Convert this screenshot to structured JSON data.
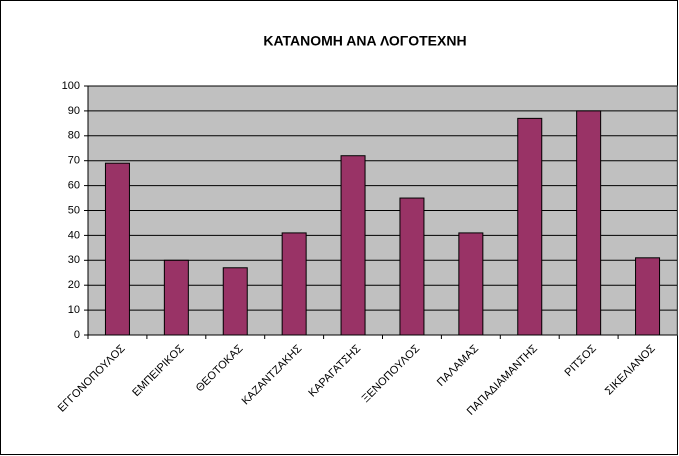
{
  "chart_data": {
    "type": "bar",
    "title": "ΚΑΤΑΝΟΜΗ ΑΝΑ ΛΟΓΟΤΕΧΝΗ",
    "categories": [
      "ΕΓΓΟΝΟΠΟΥΛΟΣ",
      "ΕΜΠΕΙΡΙΚΟΣ",
      "ΘΕΟΤΟΚΑΣ",
      "ΚΑΖΑΝΤΖΑΚΗΣ",
      "ΚΑΡΑΓΑΤΣΗΣ",
      "ΞΕΝΟΠΟΥΛΟΣ",
      "ΠΑΛΑΜΑΣ",
      "ΠΑΠΑΔΙΑΜΑΝΤΗΣ",
      "ΡΙΤΣΟΣ",
      "ΣΙΚΕΛΙΑΝΟΣ"
    ],
    "values": [
      69,
      30,
      27,
      41,
      72,
      55,
      41,
      87,
      90,
      31
    ],
    "color": "#993366",
    "ylim": [
      0,
      100
    ],
    "yticks": [
      0,
      10,
      20,
      30,
      40,
      50,
      60,
      70,
      80,
      90,
      100
    ],
    "grid": true
  }
}
